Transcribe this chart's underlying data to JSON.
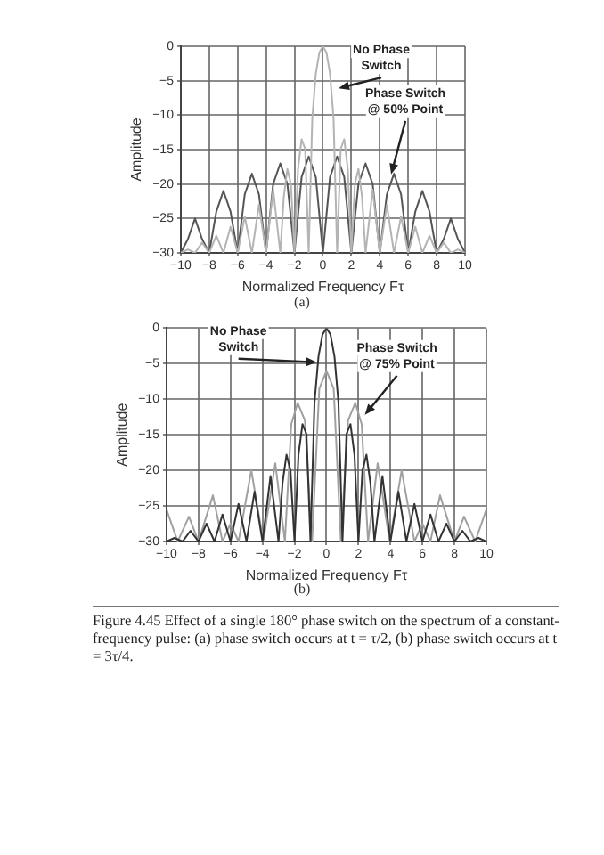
{
  "chart_data": [
    {
      "type": "line",
      "subtitle": "(a)",
      "xlabel": "Normalized Frequency Fτ",
      "ylabel": "Amplitude",
      "xlim": [
        -10,
        10
      ],
      "xticks": [
        -10,
        -8,
        -6,
        -4,
        -2,
        0,
        2,
        4,
        6,
        8,
        10
      ],
      "ylim": [
        -30,
        0
      ],
      "yticks": [
        0,
        -5,
        -10,
        -15,
        -20,
        -25,
        -30
      ],
      "grid": true,
      "series": [
        {
          "color": "#b4b4b4",
          "x": [
            -10,
            -9.5,
            -9,
            -8.5,
            -8,
            -7.5,
            -7,
            -6.5,
            -6,
            -5.5,
            -5,
            -4.5,
            -4,
            -3.5,
            -3,
            -2.75,
            -2.5,
            -2.25,
            -2,
            -1.75,
            -1.5,
            -1.25,
            -1,
            -0.75,
            -0.5,
            -0.25,
            0,
            0.25,
            0.5,
            0.75,
            1,
            1.25,
            1.5,
            1.75,
            2,
            2.25,
            2.5,
            2.75,
            3,
            3.5,
            4,
            4.5,
            5,
            5.5,
            6,
            6.5,
            7,
            7.5,
            8,
            8.5,
            9,
            9.5,
            10
          ],
          "values": [
            -30,
            -29.5,
            -30,
            -28.5,
            -30,
            -27.5,
            -30,
            -26.2,
            -30,
            -24.7,
            -30,
            -23,
            -30,
            -20.8,
            -30,
            -21.8,
            -17.8,
            -20,
            -30,
            -17.8,
            -13.5,
            -14.9,
            -30,
            -10.5,
            -4,
            -0.9,
            0,
            -0.9,
            -4,
            -10.5,
            -30,
            -14.9,
            -13.5,
            -17.8,
            -30,
            -20,
            -17.8,
            -21.8,
            -30,
            -20.8,
            -30,
            -23,
            -30,
            -24.7,
            -30,
            -26.2,
            -30,
            -27.5,
            -30,
            -28.5,
            -30,
            -29.5,
            -30
          ]
        },
        {
          "color": "#555555",
          "x": [
            -10,
            -9.5,
            -9,
            -8.5,
            -8,
            -7.5,
            -7,
            -6.5,
            -6,
            -5.5,
            -5,
            -4.5,
            -4,
            -3.5,
            -3,
            -2.5,
            -2,
            -1.5,
            -1,
            -0.5,
            0,
            0.5,
            1,
            1.5,
            2,
            2.5,
            3,
            3.5,
            4,
            4.5,
            5,
            5.5,
            6,
            6.5,
            7,
            7.5,
            8,
            8.5,
            9,
            9.5,
            10
          ],
          "values": [
            -30,
            -28,
            -25,
            -28,
            -30,
            -24,
            -21,
            -24,
            -30,
            -21.5,
            -18.5,
            -21.5,
            -30,
            -20,
            -17,
            -20,
            -30,
            -19,
            -16,
            -19,
            -30,
            -19,
            -16,
            -19,
            -30,
            -20,
            -17,
            -20,
            -30,
            -21.5,
            -18.5,
            -21.5,
            -30,
            -24,
            -21,
            -24,
            -30,
            -28,
            -25,
            -28,
            -30
          ]
        }
      ],
      "annotations": [
        {
          "text": "No Phase Switch",
          "x": 1.1,
          "y": -6.1
        },
        {
          "text": "Phase Switch @ 50% Point",
          "x": 4.8,
          "y": -18.6
        }
      ]
    },
    {
      "type": "line",
      "subtitle": "(b)",
      "xlabel": "Normalized Frequency Fτ",
      "ylabel": "Amplitude",
      "xlim": [
        -10,
        10
      ],
      "xticks": [
        -10,
        -8,
        -6,
        -4,
        -2,
        0,
        2,
        4,
        6,
        8,
        10
      ],
      "ylim": [
        -30,
        0
      ],
      "yticks": [
        0,
        -5,
        -10,
        -15,
        -20,
        -25,
        -30
      ],
      "grid": true,
      "series": [
        {
          "color": "#333333",
          "x": [
            -10,
            -9.5,
            -9,
            -8.5,
            -8,
            -7.5,
            -7,
            -6.5,
            -6,
            -5.5,
            -5,
            -4.5,
            -4,
            -3.5,
            -3,
            -2.75,
            -2.5,
            -2.25,
            -2,
            -1.75,
            -1.5,
            -1.25,
            -1,
            -0.75,
            -0.5,
            -0.25,
            0,
            0.25,
            0.5,
            0.75,
            1,
            1.25,
            1.5,
            1.75,
            2,
            2.25,
            2.5,
            2.75,
            3,
            3.5,
            4,
            4.5,
            5,
            5.5,
            6,
            6.5,
            7,
            7.5,
            8,
            8.5,
            9,
            9.5,
            10
          ],
          "values": [
            -30,
            -29.5,
            -30,
            -28.5,
            -30,
            -27.5,
            -30,
            -26.2,
            -30,
            -24.7,
            -30,
            -23,
            -30,
            -20.8,
            -30,
            -21.8,
            -17.8,
            -20,
            -30,
            -17.8,
            -13.5,
            -14.9,
            -30,
            -10.5,
            -4,
            -0.9,
            0,
            -0.9,
            -4,
            -10.5,
            -30,
            -14.9,
            -13.5,
            -17.8,
            -30,
            -20,
            -17.8,
            -21.8,
            -30,
            -20.8,
            -30,
            -23,
            -30,
            -24.7,
            -30,
            -26.2,
            -30,
            -27.5,
            -30,
            -28.5,
            -30,
            -29.5,
            -30
          ]
        },
        {
          "color": "#a0a0a0",
          "x": [
            -10,
            -9.3,
            -8.6,
            -8,
            -7.1,
            -6.5,
            -6,
            -5.5,
            -4.7,
            -3.95,
            -3.2,
            -2.6,
            -2.2,
            -1.8,
            -1.35,
            -0.9,
            -0.45,
            0,
            0.45,
            0.9,
            1.35,
            1.8,
            2.2,
            2.6,
            3.2,
            3.95,
            4.7,
            5.5,
            6,
            6.5,
            7.1,
            8,
            8.6,
            9.3,
            10
          ],
          "values": [
            -25.5,
            -30,
            -26.5,
            -30,
            -23.5,
            -30,
            -27.5,
            -30,
            -20,
            -30,
            -19,
            -30,
            -13.5,
            -10.5,
            -13,
            -30,
            -8.5,
            -6,
            -8.5,
            -30,
            -13,
            -10.5,
            -13.5,
            -30,
            -19,
            -30,
            -20,
            -30,
            -27.5,
            -30,
            -23.5,
            -30,
            -26.5,
            -30,
            -25.5
          ]
        }
      ],
      "annotations": [
        {
          "text": "No Phase Switch",
          "x": -0.6,
          "y": -4.8
        },
        {
          "text": "Phase Switch @ 75% Point",
          "x": 2.4,
          "y": -12.2
        },
        "Figure 4.45 Effect of a single 180° phase switch on the spectrum of a constant-frequency pulse: (a) phase switch occurs at t = τ/2, (b) phase switch occurs at t = 3τ/4."
      ]
    }
  ]
}
